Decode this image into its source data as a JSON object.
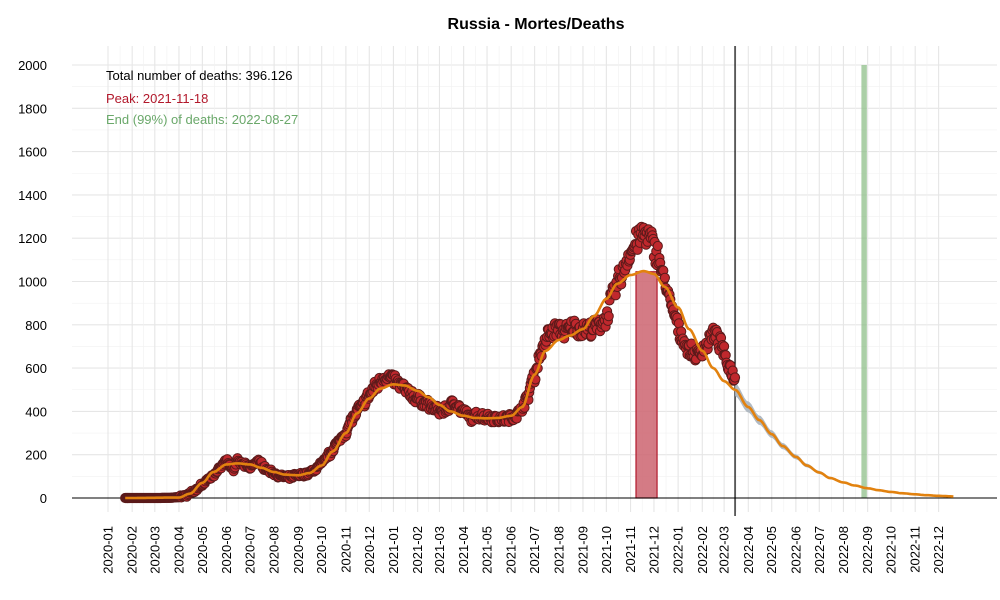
{
  "chart_data": {
    "type": "scatter",
    "title": "Russia - Mortes/Deaths",
    "xlabel": "",
    "ylabel": "",
    "ylim": [
      0,
      2000
    ],
    "xlim": [
      "2020-01-01",
      "2022-12-31"
    ],
    "yticks": [
      0,
      200,
      400,
      600,
      800,
      1000,
      1200,
      1400,
      1600,
      1800,
      2000
    ],
    "xticks": [
      "2020-01",
      "2020-02",
      "2020-03",
      "2020-04",
      "2020-05",
      "2020-06",
      "2020-07",
      "2020-08",
      "2020-09",
      "2020-10",
      "2020-11",
      "2020-12",
      "2021-01",
      "2021-02",
      "2021-03",
      "2021-04",
      "2021-05",
      "2021-06",
      "2021-07",
      "2021-08",
      "2021-09",
      "2021-10",
      "2021-11",
      "2021-12",
      "2022-01",
      "2022-02",
      "2022-03",
      "2022-04",
      "2022-05",
      "2022-06",
      "2022-07",
      "2022-08",
      "2022-09",
      "2022-10",
      "2022-11",
      "2022-12"
    ],
    "grid": true,
    "annotations": {
      "total": "Total number of deaths: 396.126",
      "peak": "Peak: 2021-11-18",
      "end": "End (99%) of deaths: 2022-08-27"
    },
    "colors": {
      "points_fill": "#c0282d",
      "points_stroke": "#5a1a1a",
      "fit_line": "#e2820f",
      "forecast_band": "#a8b2bd",
      "peak_band": "#cc6470",
      "end_band": "#8fbf8a",
      "peak_text": "#b2182b",
      "end_text": "#6aa86a"
    },
    "last_observed": "2022-03-15",
    "peak_band": [
      "2021-11-08",
      "2021-12-05"
    ],
    "peak_band_height": 1045,
    "end_band": [
      "2022-08-24",
      "2022-08-31"
    ],
    "observed_series": {
      "name": "",
      "points": [
        [
          "2020-01-23",
          0
        ],
        [
          "2020-02-05",
          0
        ],
        [
          "2020-02-20",
          0
        ],
        [
          "2020-03-05",
          0
        ],
        [
          "2020-03-20",
          1
        ],
        [
          "2020-03-31",
          4
        ],
        [
          "2020-04-10",
          12
        ],
        [
          "2020-04-20",
          30
        ],
        [
          "2020-04-30",
          60
        ],
        [
          "2020-05-10",
          90
        ],
        [
          "2020-05-20",
          120
        ],
        [
          "2020-05-25",
          150
        ],
        [
          "2020-06-01",
          175
        ],
        [
          "2020-06-05",
          150
        ],
        [
          "2020-06-10",
          130
        ],
        [
          "2020-06-15",
          170
        ],
        [
          "2020-06-20",
          160
        ],
        [
          "2020-06-25",
          150
        ],
        [
          "2020-07-01",
          140
        ],
        [
          "2020-07-05",
          155
        ],
        [
          "2020-07-10",
          170
        ],
        [
          "2020-07-15",
          160
        ],
        [
          "2020-07-20",
          140
        ],
        [
          "2020-07-25",
          125
        ],
        [
          "2020-08-01",
          115
        ],
        [
          "2020-08-10",
          100
        ],
        [
          "2020-08-20",
          95
        ],
        [
          "2020-08-30",
          105
        ],
        [
          "2020-09-10",
          110
        ],
        [
          "2020-09-20",
          125
        ],
        [
          "2020-10-01",
          160
        ],
        [
          "2020-10-10",
          200
        ],
        [
          "2020-10-20",
          250
        ],
        [
          "2020-10-31",
          300
        ],
        [
          "2020-11-10",
          370
        ],
        [
          "2020-11-20",
          420
        ],
        [
          "2020-11-30",
          470
        ],
        [
          "2020-12-10",
          520
        ],
        [
          "2020-12-20",
          560
        ],
        [
          "2020-12-31",
          550
        ],
        [
          "2021-01-10",
          520
        ],
        [
          "2021-01-20",
          490
        ],
        [
          "2021-01-31",
          460
        ],
        [
          "2021-02-10",
          440
        ],
        [
          "2021-02-20",
          420
        ],
        [
          "2021-02-28",
          400
        ],
        [
          "2021-03-10",
          410
        ],
        [
          "2021-03-20",
          440
        ],
        [
          "2021-03-31",
          400
        ],
        [
          "2021-04-10",
          370
        ],
        [
          "2021-04-20",
          380
        ],
        [
          "2021-04-30",
          375
        ],
        [
          "2021-05-10",
          370
        ],
        [
          "2021-05-20",
          365
        ],
        [
          "2021-05-31",
          370
        ],
        [
          "2021-06-10",
          390
        ],
        [
          "2021-06-20",
          450
        ],
        [
          "2021-06-30",
          560
        ],
        [
          "2021-07-10",
          680
        ],
        [
          "2021-07-20",
          760
        ],
        [
          "2021-07-31",
          780
        ],
        [
          "2021-08-10",
          770
        ],
        [
          "2021-08-20",
          790
        ],
        [
          "2021-08-31",
          780
        ],
        [
          "2021-09-10",
          780
        ],
        [
          "2021-09-20",
          790
        ],
        [
          "2021-09-30",
          830
        ],
        [
          "2021-10-10",
          940
        ],
        [
          "2021-10-20",
          1030
        ],
        [
          "2021-10-31",
          1130
        ],
        [
          "2021-11-10",
          1190
        ],
        [
          "2021-11-18",
          1220
        ],
        [
          "2021-11-25",
          1200
        ],
        [
          "2021-12-05",
          1130
        ],
        [
          "2021-12-15",
          1000
        ],
        [
          "2021-12-25",
          860
        ],
        [
          "2022-01-05",
          750
        ],
        [
          "2022-01-15",
          680
        ],
        [
          "2022-01-25",
          660
        ],
        [
          "2022-02-05",
          700
        ],
        [
          "2022-02-15",
          760
        ],
        [
          "2022-02-25",
          710
        ],
        [
          "2022-03-05",
          620
        ],
        [
          "2022-03-15",
          560
        ]
      ]
    },
    "fit_series": {
      "name": "",
      "points": [
        [
          "2020-01-23",
          0
        ],
        [
          "2020-04-01",
          2
        ],
        [
          "2020-04-15",
          20
        ],
        [
          "2020-05-01",
          70
        ],
        [
          "2020-05-15",
          120
        ],
        [
          "2020-06-01",
          155
        ],
        [
          "2020-06-15",
          160
        ],
        [
          "2020-07-01",
          155
        ],
        [
          "2020-07-15",
          140
        ],
        [
          "2020-08-01",
          120
        ],
        [
          "2020-08-15",
          108
        ],
        [
          "2020-09-01",
          105
        ],
        [
          "2020-09-15",
          115
        ],
        [
          "2020-10-01",
          150
        ],
        [
          "2020-10-15",
          215
        ],
        [
          "2020-11-01",
          300
        ],
        [
          "2020-11-15",
          390
        ],
        [
          "2020-12-01",
          460
        ],
        [
          "2020-12-15",
          505
        ],
        [
          "2021-01-01",
          525
        ],
        [
          "2021-01-15",
          520
        ],
        [
          "2021-02-01",
          495
        ],
        [
          "2021-02-15",
          465
        ],
        [
          "2021-03-01",
          430
        ],
        [
          "2021-03-15",
          400
        ],
        [
          "2021-04-01",
          380
        ],
        [
          "2021-04-15",
          370
        ],
        [
          "2021-05-01",
          368
        ],
        [
          "2021-05-15",
          370
        ],
        [
          "2021-06-01",
          380
        ],
        [
          "2021-06-15",
          420
        ],
        [
          "2021-07-01",
          570
        ],
        [
          "2021-07-15",
          680
        ],
        [
          "2021-08-01",
          730
        ],
        [
          "2021-08-15",
          750
        ],
        [
          "2021-09-01",
          780
        ],
        [
          "2021-09-15",
          840
        ],
        [
          "2021-10-01",
          920
        ],
        [
          "2021-10-15",
          990
        ],
        [
          "2021-11-01",
          1030
        ],
        [
          "2021-11-18",
          1048
        ],
        [
          "2021-12-01",
          1035
        ],
        [
          "2021-12-15",
          975
        ],
        [
          "2022-01-01",
          880
        ],
        [
          "2022-01-15",
          780
        ],
        [
          "2022-02-01",
          680
        ],
        [
          "2022-02-15",
          600
        ],
        [
          "2022-03-01",
          540
        ],
        [
          "2022-03-15",
          500
        ],
        [
          "2022-04-01",
          420
        ],
        [
          "2022-04-15",
          360
        ],
        [
          "2022-05-01",
          295
        ],
        [
          "2022-05-15",
          240
        ],
        [
          "2022-06-01",
          190
        ],
        [
          "2022-06-15",
          150
        ],
        [
          "2022-07-01",
          118
        ],
        [
          "2022-07-15",
          92
        ],
        [
          "2022-08-01",
          72
        ],
        [
          "2022-08-15",
          58
        ],
        [
          "2022-09-01",
          45
        ],
        [
          "2022-09-15",
          36
        ],
        [
          "2022-10-01",
          28
        ],
        [
          "2022-10-15",
          22
        ],
        [
          "2022-11-01",
          17
        ],
        [
          "2022-11-15",
          13
        ],
        [
          "2022-12-01",
          10
        ],
        [
          "2022-12-15",
          8
        ],
        [
          "2022-12-20",
          7
        ]
      ]
    }
  }
}
